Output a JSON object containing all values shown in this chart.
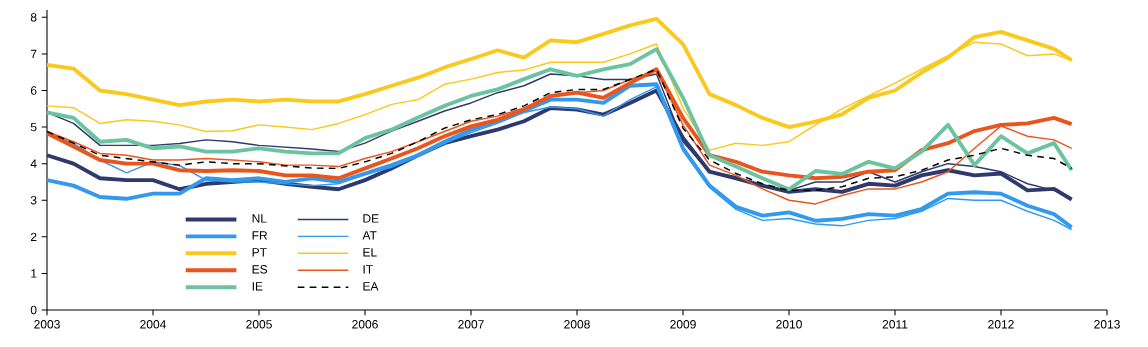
{
  "chart_data": {
    "type": "line",
    "x": [
      "2003-01",
      "2003-04",
      "2003-07",
      "2003-10",
      "2004-01",
      "2004-04",
      "2004-07",
      "2004-10",
      "2005-01",
      "2005-04",
      "2005-07",
      "2005-10",
      "2006-01",
      "2006-04",
      "2006-07",
      "2006-10",
      "2007-01",
      "2007-04",
      "2007-07",
      "2007-10",
      "2008-01",
      "2008-04",
      "2008-07",
      "2008-10",
      "2009-01",
      "2009-04",
      "2009-07",
      "2009-10",
      "2010-01",
      "2010-04",
      "2010-07",
      "2010-10",
      "2011-01",
      "2011-04",
      "2011-07",
      "2011-10",
      "2012-01",
      "2012-04",
      "2012-07",
      "2012-09"
    ],
    "series": [
      {
        "name": "NL",
        "color": "#2e3a6e",
        "values": [
          4.23,
          4.0,
          3.6,
          3.55,
          3.55,
          3.3,
          3.45,
          3.5,
          3.55,
          3.45,
          3.37,
          3.3,
          3.55,
          3.87,
          4.23,
          4.56,
          4.75,
          4.93,
          5.16,
          5.52,
          5.48,
          5.34,
          5.66,
          6.0,
          4.7,
          3.78,
          3.6,
          3.4,
          3.23,
          3.3,
          3.23,
          3.45,
          3.4,
          3.68,
          3.82,
          3.68,
          3.73,
          3.27,
          3.31,
          3.02
        ]
      },
      {
        "name": "DE",
        "color": "#2e3a6e",
        "values": [
          5.4,
          5.1,
          4.5,
          4.5,
          4.5,
          4.55,
          4.65,
          4.6,
          4.5,
          4.45,
          4.4,
          4.33,
          4.56,
          4.89,
          5.16,
          5.44,
          5.66,
          5.94,
          6.13,
          6.45,
          6.4,
          6.3,
          6.3,
          6.45,
          4.6,
          3.78,
          3.64,
          3.4,
          3.27,
          3.5,
          3.5,
          3.78,
          3.5,
          3.78,
          4.0,
          3.92,
          3.78,
          3.45,
          3.27,
          3.04
        ]
      },
      {
        "name": "FR",
        "color": "#3399ee",
        "values": [
          3.55,
          3.4,
          3.09,
          3.04,
          3.18,
          3.18,
          3.6,
          3.55,
          3.6,
          3.5,
          3.6,
          3.5,
          3.73,
          3.96,
          4.23,
          4.6,
          4.93,
          5.16,
          5.44,
          5.75,
          5.75,
          5.66,
          6.13,
          6.17,
          4.42,
          3.4,
          2.82,
          2.58,
          2.67,
          2.44,
          2.49,
          2.62,
          2.58,
          2.76,
          3.18,
          3.22,
          3.18,
          2.85,
          2.62,
          2.26
        ]
      },
      {
        "name": "AT",
        "color": "#3399ee",
        "values": [
          4.85,
          4.55,
          4.1,
          3.75,
          4.05,
          3.95,
          3.55,
          3.5,
          3.5,
          3.45,
          3.4,
          3.45,
          3.7,
          3.9,
          4.2,
          4.55,
          4.85,
          5.1,
          5.4,
          5.55,
          5.5,
          5.3,
          5.75,
          6.1,
          4.35,
          3.35,
          2.75,
          2.45,
          2.5,
          2.35,
          2.3,
          2.45,
          2.5,
          2.7,
          3.05,
          3.0,
          3.0,
          2.7,
          2.45,
          2.2
        ]
      },
      {
        "name": "PT",
        "color": "#f9c91e",
        "values": [
          6.7,
          6.6,
          6.0,
          5.9,
          5.75,
          5.6,
          5.7,
          5.75,
          5.7,
          5.75,
          5.7,
          5.7,
          5.9,
          6.13,
          6.35,
          6.63,
          6.86,
          7.1,
          6.9,
          7.37,
          7.32,
          7.55,
          7.78,
          7.96,
          7.27,
          5.9,
          5.6,
          5.25,
          5.0,
          5.15,
          5.35,
          5.8,
          6.0,
          6.49,
          6.9,
          7.46,
          7.6,
          7.37,
          7.14,
          6.83
        ]
      },
      {
        "name": "EL",
        "color": "#f9c91e",
        "values": [
          5.58,
          5.53,
          5.1,
          5.2,
          5.16,
          5.06,
          4.88,
          4.9,
          5.06,
          5.0,
          4.93,
          5.1,
          5.34,
          5.62,
          5.75,
          6.17,
          6.31,
          6.49,
          6.56,
          6.77,
          6.77,
          6.77,
          7.0,
          7.27,
          5.52,
          4.37,
          4.56,
          4.5,
          4.6,
          5.06,
          5.5,
          5.85,
          6.2,
          6.58,
          6.95,
          7.32,
          7.27,
          6.95,
          7.0,
          6.81
        ]
      },
      {
        "name": "ES",
        "color": "#e8561e",
        "values": [
          4.83,
          4.47,
          4.1,
          4.0,
          4.0,
          3.82,
          3.8,
          3.82,
          3.8,
          3.68,
          3.68,
          3.6,
          3.87,
          4.14,
          4.42,
          4.75,
          5.02,
          5.2,
          5.48,
          5.85,
          5.94,
          5.8,
          6.2,
          6.58,
          5.25,
          4.23,
          4.05,
          3.78,
          3.68,
          3.6,
          3.64,
          3.78,
          3.82,
          4.37,
          4.56,
          4.89,
          5.06,
          5.1,
          5.25,
          5.08
        ]
      },
      {
        "name": "IT",
        "color": "#e8561e",
        "values": [
          4.88,
          4.6,
          4.28,
          4.23,
          4.1,
          4.1,
          4.14,
          4.1,
          4.05,
          3.96,
          3.96,
          3.92,
          4.14,
          4.33,
          4.6,
          4.88,
          5.16,
          5.3,
          5.52,
          5.85,
          5.94,
          6.0,
          6.3,
          6.54,
          5.06,
          3.96,
          3.68,
          3.31,
          3.0,
          2.9,
          3.13,
          3.31,
          3.31,
          3.5,
          3.78,
          4.42,
          5.03,
          4.75,
          4.65,
          4.42
        ]
      },
      {
        "name": "IE",
        "color": "#6cc3a0",
        "values": [
          5.4,
          5.25,
          4.6,
          4.65,
          4.42,
          4.47,
          4.33,
          4.33,
          4.42,
          4.33,
          4.28,
          4.28,
          4.7,
          4.93,
          5.26,
          5.58,
          5.85,
          6.03,
          6.31,
          6.58,
          6.4,
          6.58,
          6.72,
          7.13,
          5.8,
          4.23,
          3.92,
          3.6,
          3.3,
          3.8,
          3.72,
          4.05,
          3.87,
          4.33,
          5.06,
          3.96,
          4.75,
          4.28,
          4.56,
          3.82
        ]
      },
      {
        "name": "EA",
        "color": "#000000",
        "line_style": "dashed",
        "values": [
          4.88,
          4.56,
          4.23,
          4.14,
          4.05,
          3.96,
          4.05,
          4.0,
          4.0,
          3.94,
          3.88,
          3.87,
          4.05,
          4.28,
          4.6,
          4.97,
          5.2,
          5.34,
          5.58,
          5.94,
          6.03,
          6.03,
          6.3,
          6.58,
          4.97,
          4.1,
          3.73,
          3.45,
          3.27,
          3.27,
          3.37,
          3.6,
          3.64,
          3.82,
          4.1,
          4.23,
          4.42,
          4.23,
          4.14,
          3.87
        ]
      }
    ],
    "xlim": [
      "2003",
      "2013"
    ],
    "xticks": [
      "2003",
      "2004",
      "2005",
      "2006",
      "2007",
      "2008",
      "2009",
      "2010",
      "2011",
      "2012",
      "2013"
    ],
    "ylim": [
      0,
      8.2
    ],
    "yticks": [
      0,
      1,
      2,
      3,
      4,
      5,
      6,
      7,
      8
    ],
    "grid": false,
    "legend": "bottom left"
  }
}
